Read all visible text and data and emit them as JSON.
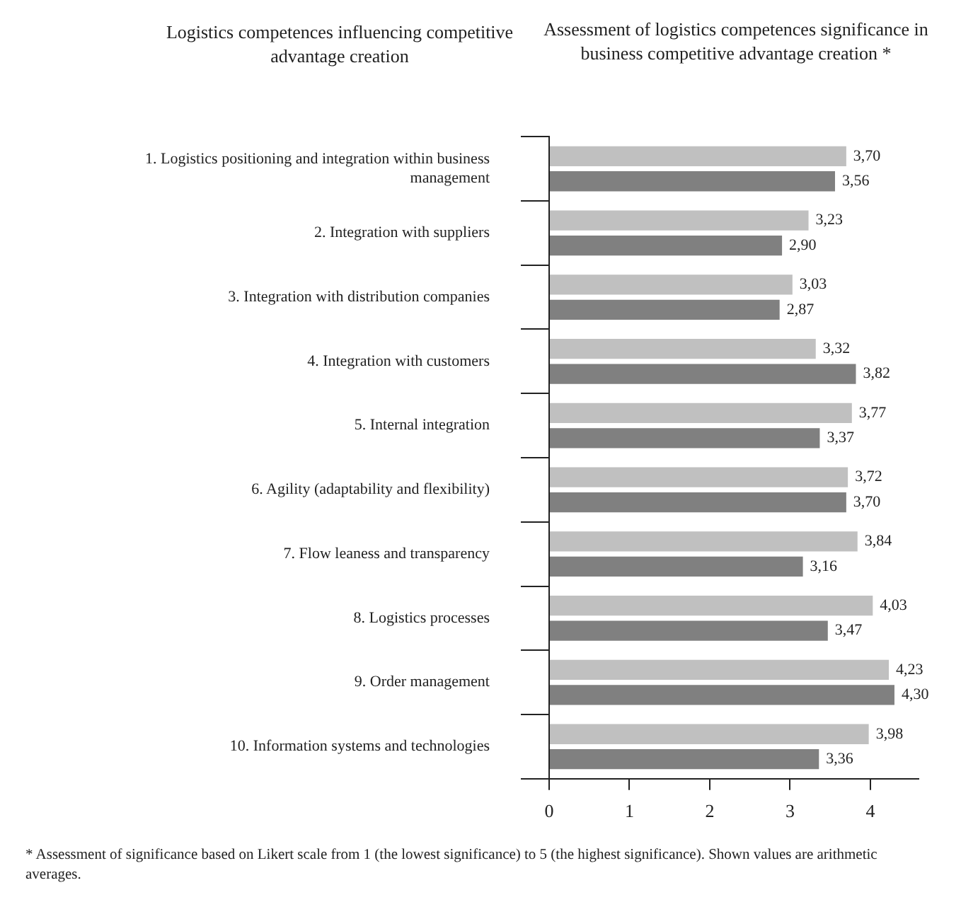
{
  "chart_data": {
    "type": "bar",
    "orientation": "horizontal",
    "title": "Assessment of logistics competences significance in business competitive advantage creation *",
    "ylabel": "Logistics competences influencing competitive advantage creation",
    "categories": [
      "1. Logistics positioning and integration within business management",
      "2. Integration with suppliers",
      "3. Integration with distribution companies",
      "4. Integration with customers",
      "5. Internal integration",
      "6. Agility (adaptability and flexibility)",
      "7. Flow leaness and transparency",
      "8. Logistics processes",
      "9. Order management",
      "10. Information systems and technologies"
    ],
    "series": [
      {
        "color": "#c0c0c0",
        "values": [
          3.7,
          3.23,
          3.03,
          3.32,
          3.77,
          3.72,
          3.84,
          4.03,
          4.23,
          3.98
        ],
        "value_labels": [
          "3,70",
          "3,23",
          "3,03",
          "3,32",
          "3,77",
          "3,72",
          "3,84",
          "4,03",
          "4,23",
          "3,98"
        ]
      },
      {
        "color": "#808080",
        "values": [
          3.56,
          2.9,
          2.87,
          3.82,
          3.37,
          3.7,
          3.16,
          3.47,
          4.3,
          3.36
        ],
        "value_labels": [
          "3,56",
          "2,90",
          "2,87",
          "3,82",
          "3,37",
          "3,70",
          "3,16",
          "3,47",
          "4,30",
          "3,36"
        ]
      }
    ],
    "xlim": [
      0,
      4.6
    ],
    "xticks": [
      0,
      1,
      2,
      3,
      4
    ],
    "grid": false,
    "legend": false,
    "annotations": [
      "* Assessment of significance based on Likert scale from 1 (the lowest significance) to 5 (the highest significance). Shown values are arithmetic averages."
    ]
  }
}
